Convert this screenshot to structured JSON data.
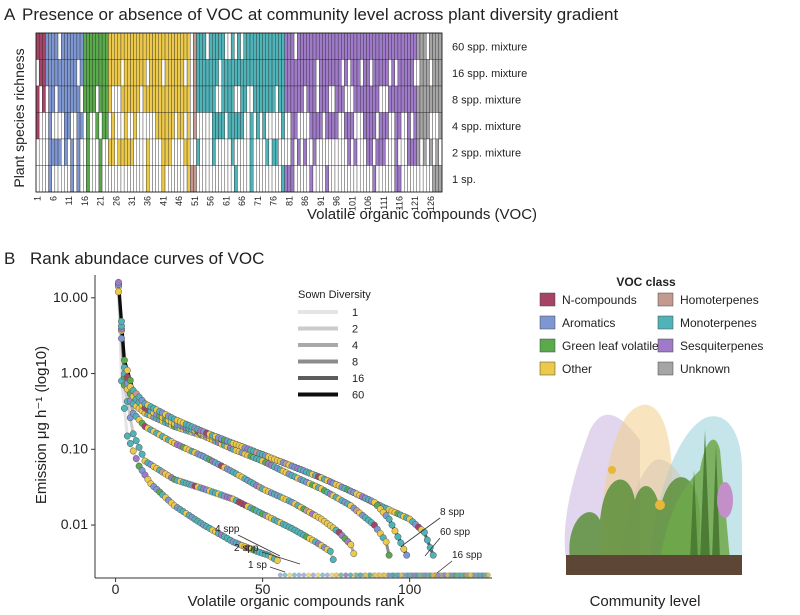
{
  "panel_a": {
    "letter": "A",
    "title": "Presence or absence of VOC at community level across plant diversity gradient",
    "ylabel": "Plant species richness",
    "xlabel": "Volatile organic compounds (VOC)",
    "rows": [
      "60 spp. mixture",
      "16 spp. mixture",
      "8 spp. mixture",
      "4 spp. mixture",
      "2 spp. mixture",
      "1 sp."
    ],
    "ticks": [
      "1",
      "6",
      "11",
      "16",
      "21",
      "26",
      "31",
      "36",
      "41",
      "46",
      "51",
      "56",
      "61",
      "66",
      "71",
      "76",
      "81",
      "86",
      "91",
      "96",
      "101",
      "106",
      "111",
      "116",
      "121",
      "126"
    ],
    "n_compounds": 129
  },
  "panel_b": {
    "letter": "B",
    "title": "Rank abundace curves of VOC",
    "ylabel": "Emission μg h⁻¹ (log10)",
    "xlabel": "Volatile organic compounds rank",
    "yticks": [
      "10.00",
      "1.00",
      "0.10",
      "0.01"
    ],
    "xticks": [
      "0",
      "50",
      "100"
    ],
    "legend_title": "Sown Diversity",
    "annotations": [
      "4 spp",
      "2 spp",
      "1 sp",
      "8 spp",
      "60 spp",
      "16 spp"
    ]
  },
  "voc_class_legend": {
    "title": "VOC class",
    "items": [
      {
        "label": "N-compounds",
        "color": "#a64466"
      },
      {
        "label": "Homoterpenes",
        "color": "#c49a8e"
      },
      {
        "label": "Aromatics",
        "color": "#7e97d2"
      },
      {
        "label": "Monoterpenes",
        "color": "#4fb3b8"
      },
      {
        "label": "Green leaf volatiles",
        "color": "#5aaa4c"
      },
      {
        "label": "Sesquiterpenes",
        "color": "#9f7ac8"
      },
      {
        "label": "Other",
        "color": "#ecc94a"
      },
      {
        "label": "Unknown",
        "color": "#a5a5a5"
      }
    ]
  },
  "illustration_caption": "Community level",
  "chart_data": [
    {
      "type": "heatmap",
      "title": "Presence or absence of VOC at community level across plant diversity gradient",
      "xlabel": "Volatile organic compounds (VOC)",
      "ylabel": "Plant species richness",
      "rows": [
        "60 spp. mixture",
        "16 spp. mixture",
        "8 spp. mixture",
        "4 spp. mixture",
        "2 spp. mixture",
        "1 sp."
      ],
      "x_range": [
        1,
        129
      ],
      "class_ranges": [
        {
          "class": "N-compounds",
          "from": 1,
          "to": 3
        },
        {
          "class": "Aromatics",
          "from": 4,
          "to": 15
        },
        {
          "class": "Green leaf volatiles",
          "from": 16,
          "to": 23
        },
        {
          "class": "Other",
          "from": 24,
          "to": 49
        },
        {
          "class": "Homoterpenes",
          "from": 50,
          "to": 51
        },
        {
          "class": "Monoterpenes",
          "from": 52,
          "to": 79
        },
        {
          "class": "Sesquiterpenes",
          "from": 80,
          "to": 121
        },
        {
          "class": "Unknown",
          "from": 122,
          "to": 129
        }
      ],
      "presence_fraction": {
        "60 spp. mixture": 0.9,
        "16 spp. mixture": 0.85,
        "8 spp. mixture": 0.75,
        "4 spp. mixture": 0.5,
        "2 spp. mixture": 0.38,
        "1 sp.": 0.2
      }
    },
    {
      "type": "scatter",
      "title": "Rank abundace curves of VOC",
      "xlabel": "Volatile organic compounds rank",
      "ylabel": "Emission μg h⁻¹ (log10)",
      "yscale": "log",
      "ylim": [
        0.002,
        20
      ],
      "xlim": [
        -7,
        128
      ],
      "legend_title": "Sown Diversity",
      "legend_position": "top-center",
      "series": [
        {
          "name": "1",
          "color": "#e4e4e4",
          "points": [
            [
              1,
              14
            ],
            [
              2,
              0.8
            ],
            [
              4,
              0.15
            ],
            [
              8,
              0.06
            ],
            [
              12,
              0.035
            ],
            [
              20,
              0.018
            ],
            [
              30,
              0.01
            ],
            [
              40,
              0.006
            ],
            [
              48,
              0.0045
            ],
            [
              52,
              0.004
            ],
            [
              55,
              0.0034
            ]
          ]
        },
        {
          "name": "2",
          "color": "#cbcbcb",
          "points": [
            [
              1,
              12
            ],
            [
              3,
              0.7
            ],
            [
              6,
              0.16
            ],
            [
              10,
              0.07
            ],
            [
              20,
              0.04
            ],
            [
              30,
              0.03
            ],
            [
              40,
              0.022
            ],
            [
              50,
              0.014
            ],
            [
              60,
              0.009
            ],
            [
              68,
              0.006
            ],
            [
              73,
              0.0045
            ],
            [
              74,
              0.0035
            ]
          ]
        },
        {
          "name": "4",
          "color": "#a9a9a9",
          "points": [
            [
              1,
              15
            ],
            [
              3,
              0.9
            ],
            [
              6,
              0.3
            ],
            [
              10,
              0.2
            ],
            [
              20,
              0.12
            ],
            [
              30,
              0.08
            ],
            [
              40,
              0.05
            ],
            [
              50,
              0.03
            ],
            [
              60,
              0.02
            ],
            [
              70,
              0.012
            ],
            [
              76,
              0.008
            ],
            [
              80,
              0.0055
            ],
            [
              81,
              0.0042
            ]
          ]
        },
        {
          "name": "8",
          "color": "#8c8c8c",
          "points": [
            [
              1,
              15
            ],
            [
              3,
              1.0
            ],
            [
              6,
              0.4
            ],
            [
              10,
              0.3
            ],
            [
              20,
              0.2
            ],
            [
              30,
              0.15
            ],
            [
              40,
              0.1
            ],
            [
              50,
              0.07
            ],
            [
              60,
              0.045
            ],
            [
              70,
              0.03
            ],
            [
              80,
              0.018
            ],
            [
              88,
              0.01
            ],
            [
              92,
              0.006
            ],
            [
              93,
              0.004
            ]
          ]
        },
        {
          "name": "16",
          "color": "#5c5c5c",
          "points": [
            [
              1,
              15
            ],
            [
              3,
              1.2
            ],
            [
              6,
              0.5
            ],
            [
              10,
              0.35
            ],
            [
              20,
              0.22
            ],
            [
              30,
              0.16
            ],
            [
              40,
              0.12
            ],
            [
              50,
              0.085
            ],
            [
              60,
              0.06
            ],
            [
              70,
              0.042
            ],
            [
              80,
              0.028
            ],
            [
              90,
              0.018
            ],
            [
              100,
              0.012
            ],
            [
              105,
              0.008
            ],
            [
              108,
              0.004
            ]
          ]
        },
        {
          "name": "60",
          "color": "#0d0d0d",
          "points": [
            [
              1,
              16
            ],
            [
              3,
              1.5
            ],
            [
              6,
              0.6
            ],
            [
              10,
              0.4
            ],
            [
              20,
              0.25
            ],
            [
              30,
              0.17
            ],
            [
              40,
              0.12
            ],
            [
              50,
              0.085
            ],
            [
              60,
              0.06
            ],
            [
              70,
              0.042
            ],
            [
              80,
              0.028
            ],
            [
              88,
              0.02
            ],
            [
              93,
              0.012
            ],
            [
              96,
              0.007
            ],
            [
              99,
              0.004
            ]
          ]
        }
      ]
    }
  ]
}
